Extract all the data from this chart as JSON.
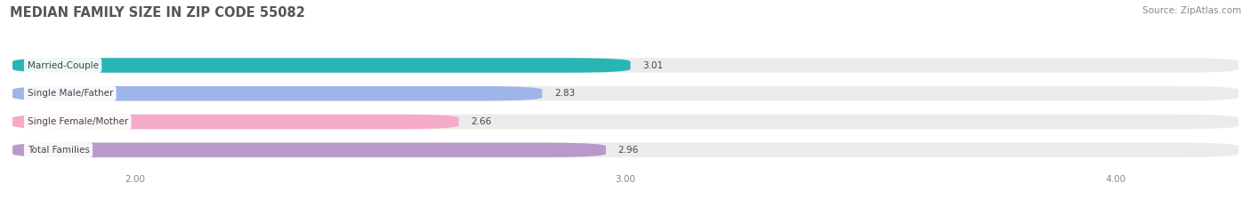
{
  "title": "MEDIAN FAMILY SIZE IN ZIP CODE 55082",
  "source": "Source: ZipAtlas.com",
  "categories": [
    "Married-Couple",
    "Single Male/Father",
    "Single Female/Mother",
    "Total Families"
  ],
  "values": [
    3.01,
    2.83,
    2.66,
    2.96
  ],
  "bar_colors": [
    "#2ab5b5",
    "#9fb4e8",
    "#f4aac8",
    "#b899cc"
  ],
  "xlim": [
    1.75,
    4.25
  ],
  "xstart": 1.75,
  "xticks": [
    2.0,
    3.0,
    4.0
  ],
  "xtick_labels": [
    "2.00",
    "3.00",
    "4.00"
  ],
  "bar_height": 0.52,
  "background_color": "#ffffff",
  "bar_background_color": "#ebebeb",
  "label_fontsize": 7.5,
  "value_fontsize": 7.5,
  "title_fontsize": 10.5,
  "source_fontsize": 7.5,
  "title_color": "#555555",
  "source_color": "#888888",
  "label_color": "#444444",
  "value_color": "#444444",
  "tick_color": "#888888"
}
